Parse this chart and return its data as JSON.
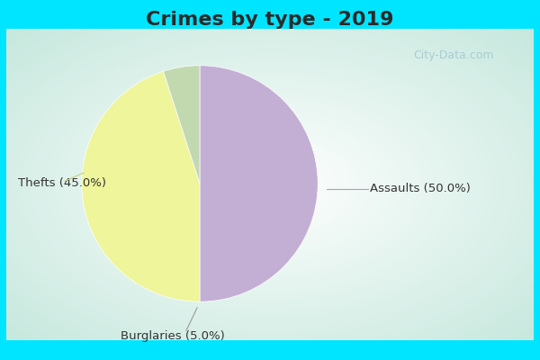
{
  "title": "Crimes by type - 2019",
  "slices": [
    {
      "label": "Assaults",
      "value": 50.0,
      "color": "#c4afd4"
    },
    {
      "label": "Thefts",
      "value": 45.0,
      "color": "#eef59a"
    },
    {
      "label": "Burglaries",
      "value": 5.0,
      "color": "#c2d9b0"
    }
  ],
  "background_outer": "#00e5ff",
  "title_fontsize": 16,
  "title_color": "#2a2a2a",
  "label_fontsize": 9.5,
  "label_color": "#333333",
  "watermark": "City-Data.com",
  "watermark_color": "#a0c8d0",
  "inner_bg_colors": [
    "#b8ddd5",
    "#cce8e0",
    "#ddf0e8",
    "#eaf8f2",
    "#f5fffe",
    "#ffffff",
    "#f5fffe",
    "#eaf8f2"
  ],
  "assaults_line_color": "#b09dc0",
  "thefts_line_color": "#c8cc80",
  "burglaries_line_color": "#999999"
}
